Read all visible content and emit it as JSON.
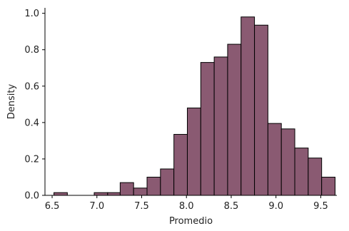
{
  "chart_data": {
    "type": "bar",
    "subtype": "histogram",
    "title": "",
    "xlabel": "Promedio",
    "ylabel": "Density",
    "xlim": [
      6.42,
      9.68
    ],
    "ylim": [
      0,
      1.03
    ],
    "x_ticks": [
      "6.5",
      "7.0",
      "7.5",
      "8.0",
      "8.5",
      "9.0",
      "9.5"
    ],
    "x_tick_values": [
      6.5,
      7.0,
      7.5,
      8.0,
      8.5,
      9.0,
      9.5
    ],
    "y_ticks": [
      "0.0",
      "0.2",
      "0.4",
      "0.6",
      "0.8",
      "1.0"
    ],
    "y_tick_values": [
      0.0,
      0.2,
      0.4,
      0.6,
      0.8,
      1.0
    ],
    "grid": false,
    "bar_color": "#8a5a72",
    "edge_color": "#000000",
    "bins": [
      {
        "x0": 6.52,
        "x1": 6.67,
        "value": 0.015
      },
      {
        "x0": 6.97,
        "x1": 7.12,
        "value": 0.015
      },
      {
        "x0": 7.12,
        "x1": 7.26,
        "value": 0.015
      },
      {
        "x0": 7.26,
        "x1": 7.41,
        "value": 0.07
      },
      {
        "x0": 7.41,
        "x1": 7.56,
        "value": 0.04
      },
      {
        "x0": 7.56,
        "x1": 7.71,
        "value": 0.1
      },
      {
        "x0": 7.71,
        "x1": 7.86,
        "value": 0.145
      },
      {
        "x0": 7.86,
        "x1": 8.01,
        "value": 0.335
      },
      {
        "x0": 8.01,
        "x1": 8.16,
        "value": 0.48
      },
      {
        "x0": 8.16,
        "x1": 8.31,
        "value": 0.73
      },
      {
        "x0": 8.31,
        "x1": 8.46,
        "value": 0.76
      },
      {
        "x0": 8.46,
        "x1": 8.61,
        "value": 0.83
      },
      {
        "x0": 8.61,
        "x1": 8.76,
        "value": 0.98
      },
      {
        "x0": 8.76,
        "x1": 8.91,
        "value": 0.935
      },
      {
        "x0": 8.91,
        "x1": 9.06,
        "value": 0.395
      },
      {
        "x0": 9.06,
        "x1": 9.21,
        "value": 0.365
      },
      {
        "x0": 9.21,
        "x1": 9.36,
        "value": 0.26
      },
      {
        "x0": 9.36,
        "x1": 9.51,
        "value": 0.205
      },
      {
        "x0": 9.51,
        "x1": 9.66,
        "value": 0.1
      }
    ]
  }
}
